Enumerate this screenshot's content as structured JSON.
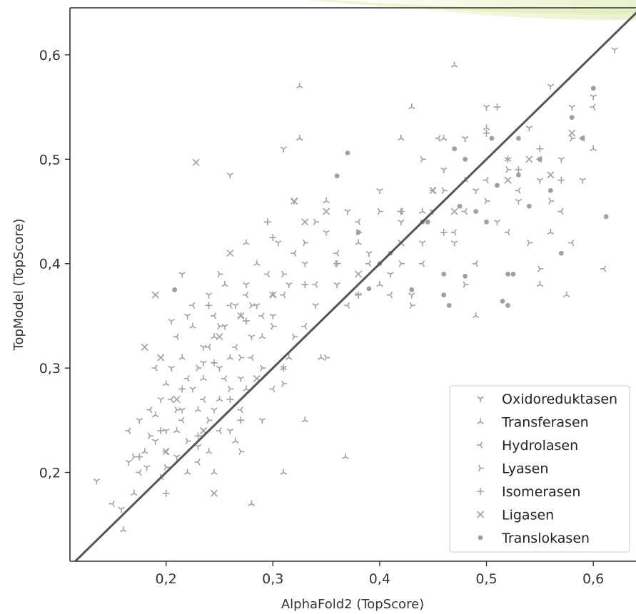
{
  "chart_data": {
    "type": "scatter",
    "xlabel": "AlphaFold2 (TopScore)",
    "ylabel": "TopModel (TopScore)",
    "xlim": [
      0.11,
      0.64
    ],
    "ylim": [
      0.115,
      0.645
    ],
    "xticks": [
      {
        "value": 0.2,
        "label": "0,2"
      },
      {
        "value": 0.3,
        "label": "0,3"
      },
      {
        "value": 0.4,
        "label": "0,4"
      },
      {
        "value": 0.5,
        "label": "0,5"
      },
      {
        "value": 0.6,
        "label": "0,6"
      }
    ],
    "yticks": [
      {
        "value": 0.2,
        "label": "0,2"
      },
      {
        "value": 0.3,
        "label": "0,3"
      },
      {
        "value": 0.4,
        "label": "0,4"
      },
      {
        "value": 0.5,
        "label": "0,5"
      },
      {
        "value": 0.6,
        "label": "0,6"
      }
    ],
    "grid": false,
    "legend_position": "lower-right",
    "reference_line": {
      "type": "identity",
      "color": "#555555"
    },
    "marker_color": "#a0a0a0",
    "series": [
      {
        "name": "Oxidoreduktasen",
        "marker": "tri-down",
        "points": [
          [
            0.135,
            0.192
          ],
          [
            0.158,
            0.165
          ],
          [
            0.165,
            0.21
          ],
          [
            0.175,
            0.25
          ],
          [
            0.182,
            0.205
          ],
          [
            0.19,
            0.23
          ],
          [
            0.195,
            0.27
          ],
          [
            0.2,
            0.24
          ],
          [
            0.205,
            0.3
          ],
          [
            0.21,
            0.215
          ],
          [
            0.215,
            0.26
          ],
          [
            0.22,
            0.35
          ],
          [
            0.225,
            0.28
          ],
          [
            0.23,
            0.225
          ],
          [
            0.235,
            0.32
          ],
          [
            0.24,
            0.37
          ],
          [
            0.245,
            0.26
          ],
          [
            0.25,
            0.3
          ],
          [
            0.255,
            0.34
          ],
          [
            0.26,
            0.24
          ],
          [
            0.265,
            0.36
          ],
          [
            0.27,
            0.29
          ],
          [
            0.275,
            0.38
          ],
          [
            0.28,
            0.33
          ],
          [
            0.285,
            0.36
          ],
          [
            0.29,
            0.25
          ],
          [
            0.3,
            0.35
          ],
          [
            0.305,
            0.42
          ],
          [
            0.31,
            0.3
          ],
          [
            0.315,
            0.38
          ],
          [
            0.32,
            0.46
          ],
          [
            0.33,
            0.4
          ],
          [
            0.34,
            0.36
          ],
          [
            0.35,
            0.43
          ],
          [
            0.36,
            0.38
          ],
          [
            0.37,
            0.45
          ],
          [
            0.38,
            0.37
          ],
          [
            0.39,
            0.41
          ],
          [
            0.4,
            0.47
          ],
          [
            0.41,
            0.39
          ],
          [
            0.42,
            0.44
          ],
          [
            0.43,
            0.37
          ],
          [
            0.44,
            0.42
          ],
          [
            0.45,
            0.45
          ],
          [
            0.46,
            0.49
          ],
          [
            0.47,
            0.42
          ],
          [
            0.48,
            0.52
          ],
          [
            0.49,
            0.47
          ],
          [
            0.5,
            0.55
          ],
          [
            0.51,
            0.44
          ],
          [
            0.52,
            0.5
          ],
          [
            0.53,
            0.46
          ],
          [
            0.54,
            0.53
          ],
          [
            0.55,
            0.48
          ],
          [
            0.56,
            0.57
          ],
          [
            0.57,
            0.5
          ],
          [
            0.58,
            0.55
          ],
          [
            0.59,
            0.48
          ],
          [
            0.6,
            0.56
          ],
          [
            0.62,
            0.605
          ],
          [
            0.26,
            0.485
          ],
          [
            0.31,
            0.51
          ],
          [
            0.235,
            0.305
          ],
          [
            0.205,
            0.345
          ],
          [
            0.215,
            0.39
          ]
        ]
      },
      {
        "name": "Transferasen",
        "marker": "tri-up",
        "points": [
          [
            0.16,
            0.145
          ],
          [
            0.17,
            0.18
          ],
          [
            0.18,
            0.22
          ],
          [
            0.19,
            0.255
          ],
          [
            0.195,
            0.195
          ],
          [
            0.2,
            0.285
          ],
          [
            0.21,
            0.24
          ],
          [
            0.215,
            0.31
          ],
          [
            0.22,
            0.2
          ],
          [
            0.225,
            0.34
          ],
          [
            0.23,
            0.26
          ],
          [
            0.235,
            0.29
          ],
          [
            0.24,
            0.22
          ],
          [
            0.245,
            0.33
          ],
          [
            0.25,
            0.27
          ],
          [
            0.255,
            0.38
          ],
          [
            0.26,
            0.31
          ],
          [
            0.265,
            0.23
          ],
          [
            0.27,
            0.35
          ],
          [
            0.275,
            0.28
          ],
          [
            0.28,
            0.17
          ],
          [
            0.285,
            0.4
          ],
          [
            0.29,
            0.33
          ],
          [
            0.3,
            0.37
          ],
          [
            0.31,
            0.2
          ],
          [
            0.315,
            0.31
          ],
          [
            0.325,
            0.57
          ],
          [
            0.325,
            0.52
          ],
          [
            0.33,
            0.25
          ],
          [
            0.345,
            0.31
          ],
          [
            0.35,
            0.46
          ],
          [
            0.368,
            0.215
          ],
          [
            0.38,
            0.42
          ],
          [
            0.4,
            0.38
          ],
          [
            0.42,
            0.52
          ],
          [
            0.43,
            0.55
          ],
          [
            0.44,
            0.45
          ],
          [
            0.46,
            0.52
          ],
          [
            0.47,
            0.59
          ],
          [
            0.48,
            0.48
          ],
          [
            0.49,
            0.35
          ],
          [
            0.5,
            0.53
          ],
          [
            0.52,
            0.5
          ],
          [
            0.55,
            0.38
          ],
          [
            0.56,
            0.43
          ],
          [
            0.575,
            0.37
          ],
          [
            0.6,
            0.51
          ],
          [
            0.31,
            0.3
          ],
          [
            0.275,
            0.42
          ],
          [
            0.245,
            0.2
          ]
        ]
      },
      {
        "name": "Hydrolasen",
        "marker": "tri-left",
        "points": [
          [
            0.15,
            0.17
          ],
          [
            0.165,
            0.24
          ],
          [
            0.175,
            0.2
          ],
          [
            0.185,
            0.26
          ],
          [
            0.19,
            0.3
          ],
          [
            0.2,
            0.22
          ],
          [
            0.205,
            0.27
          ],
          [
            0.21,
            0.33
          ],
          [
            0.215,
            0.25
          ],
          [
            0.22,
            0.29
          ],
          [
            0.225,
            0.36
          ],
          [
            0.23,
            0.21
          ],
          [
            0.235,
            0.27
          ],
          [
            0.24,
            0.32
          ],
          [
            0.245,
            0.35
          ],
          [
            0.25,
            0.24
          ],
          [
            0.255,
            0.29
          ],
          [
            0.26,
            0.36
          ],
          [
            0.265,
            0.32
          ],
          [
            0.27,
            0.26
          ],
          [
            0.275,
            0.37
          ],
          [
            0.28,
            0.31
          ],
          [
            0.29,
            0.35
          ],
          [
            0.295,
            0.39
          ],
          [
            0.3,
            0.28
          ],
          [
            0.31,
            0.37
          ],
          [
            0.32,
            0.41
          ],
          [
            0.33,
            0.34
          ],
          [
            0.34,
            0.38
          ],
          [
            0.36,
            0.41
          ],
          [
            0.37,
            0.36
          ],
          [
            0.38,
            0.44
          ],
          [
            0.39,
            0.4
          ],
          [
            0.41,
            0.37
          ],
          [
            0.42,
            0.45
          ],
          [
            0.44,
            0.4
          ],
          [
            0.45,
            0.47
          ],
          [
            0.47,
            0.43
          ],
          [
            0.48,
            0.45
          ],
          [
            0.5,
            0.48
          ],
          [
            0.52,
            0.43
          ],
          [
            0.53,
            0.47
          ],
          [
            0.55,
            0.5
          ],
          [
            0.57,
            0.45
          ],
          [
            0.59,
            0.52
          ],
          [
            0.6,
            0.55
          ],
          [
            0.61,
            0.395
          ],
          [
            0.58,
            0.42
          ],
          [
            0.455,
            0.52
          ],
          [
            0.49,
            0.4
          ]
        ]
      },
      {
        "name": "Lyasen",
        "marker": "tri-right",
        "points": [
          [
            0.17,
            0.215
          ],
          [
            0.185,
            0.235
          ],
          [
            0.2,
            0.205
          ],
          [
            0.21,
            0.26
          ],
          [
            0.22,
            0.23
          ],
          [
            0.23,
            0.3
          ],
          [
            0.24,
            0.25
          ],
          [
            0.25,
            0.34
          ],
          [
            0.26,
            0.28
          ],
          [
            0.27,
            0.31
          ],
          [
            0.28,
            0.36
          ],
          [
            0.29,
            0.3
          ],
          [
            0.3,
            0.34
          ],
          [
            0.31,
            0.39
          ],
          [
            0.32,
            0.33
          ],
          [
            0.33,
            0.42
          ],
          [
            0.34,
            0.44
          ],
          [
            0.35,
            0.31
          ],
          [
            0.36,
            0.4
          ],
          [
            0.38,
            0.43
          ],
          [
            0.4,
            0.45
          ],
          [
            0.42,
            0.4
          ],
          [
            0.44,
            0.5
          ],
          [
            0.46,
            0.47
          ],
          [
            0.48,
            0.38
          ],
          [
            0.5,
            0.46
          ],
          [
            0.52,
            0.49
          ],
          [
            0.54,
            0.42
          ],
          [
            0.56,
            0.46
          ],
          [
            0.58,
            0.52
          ],
          [
            0.25,
            0.39
          ],
          [
            0.27,
            0.22
          ],
          [
            0.31,
            0.285
          ],
          [
            0.43,
            0.36
          ],
          [
            0.55,
            0.395
          ]
        ]
      },
      {
        "name": "Isomerasen",
        "marker": "plus",
        "points": [
          [
            0.175,
            0.215
          ],
          [
            0.195,
            0.24
          ],
          [
            0.2,
            0.18
          ],
          [
            0.215,
            0.28
          ],
          [
            0.23,
            0.235
          ],
          [
            0.245,
            0.305
          ],
          [
            0.26,
            0.27
          ],
          [
            0.275,
            0.345
          ],
          [
            0.295,
            0.44
          ],
          [
            0.3,
            0.425
          ],
          [
            0.33,
            0.38
          ],
          [
            0.36,
            0.4
          ],
          [
            0.38,
            0.37
          ],
          [
            0.42,
            0.45
          ],
          [
            0.46,
            0.43
          ],
          [
            0.5,
            0.525
          ],
          [
            0.51,
            0.55
          ],
          [
            0.53,
            0.49
          ],
          [
            0.55,
            0.51
          ],
          [
            0.57,
            0.48
          ],
          [
            0.24,
            0.36
          ],
          [
            0.27,
            0.25
          ]
        ]
      },
      {
        "name": "Ligasen",
        "marker": "x",
        "points": [
          [
            0.18,
            0.32
          ],
          [
            0.195,
            0.31
          ],
          [
            0.2,
            0.22
          ],
          [
            0.21,
            0.27
          ],
          [
            0.228,
            0.497
          ],
          [
            0.235,
            0.24
          ],
          [
            0.25,
            0.33
          ],
          [
            0.26,
            0.41
          ],
          [
            0.27,
            0.35
          ],
          [
            0.285,
            0.29
          ],
          [
            0.3,
            0.37
          ],
          [
            0.32,
            0.46
          ],
          [
            0.33,
            0.44
          ],
          [
            0.35,
            0.45
          ],
          [
            0.38,
            0.39
          ],
          [
            0.42,
            0.42
          ],
          [
            0.45,
            0.47
          ],
          [
            0.47,
            0.45
          ],
          [
            0.52,
            0.48
          ],
          [
            0.54,
            0.5
          ],
          [
            0.56,
            0.485
          ],
          [
            0.58,
            0.525
          ],
          [
            0.19,
            0.37
          ],
          [
            0.245,
            0.18
          ]
        ]
      },
      {
        "name": "Translokasen",
        "marker": "dot",
        "points": [
          [
            0.208,
            0.375
          ],
          [
            0.36,
            0.484
          ],
          [
            0.37,
            0.506
          ],
          [
            0.38,
            0.43
          ],
          [
            0.39,
            0.376
          ],
          [
            0.4,
            0.4
          ],
          [
            0.41,
            0.41
          ],
          [
            0.43,
            0.375
          ],
          [
            0.44,
            0.44
          ],
          [
            0.46,
            0.37
          ],
          [
            0.465,
            0.36
          ],
          [
            0.47,
            0.51
          ],
          [
            0.48,
            0.5
          ],
          [
            0.49,
            0.45
          ],
          [
            0.5,
            0.44
          ],
          [
            0.51,
            0.475
          ],
          [
            0.515,
            0.364
          ],
          [
            0.52,
            0.39
          ],
          [
            0.52,
            0.36
          ],
          [
            0.53,
            0.485
          ],
          [
            0.54,
            0.455
          ],
          [
            0.55,
            0.5
          ],
          [
            0.57,
            0.41
          ],
          [
            0.58,
            0.54
          ],
          [
            0.6,
            0.568
          ],
          [
            0.612,
            0.445
          ],
          [
            0.59,
            0.52
          ],
          [
            0.56,
            0.47
          ],
          [
            0.505,
            0.52
          ],
          [
            0.475,
            0.455
          ],
          [
            0.525,
            0.39
          ],
          [
            0.48,
            0.388
          ],
          [
            0.53,
            0.52
          ],
          [
            0.46,
            0.39
          ],
          [
            0.445,
            0.44
          ]
        ]
      }
    ]
  }
}
